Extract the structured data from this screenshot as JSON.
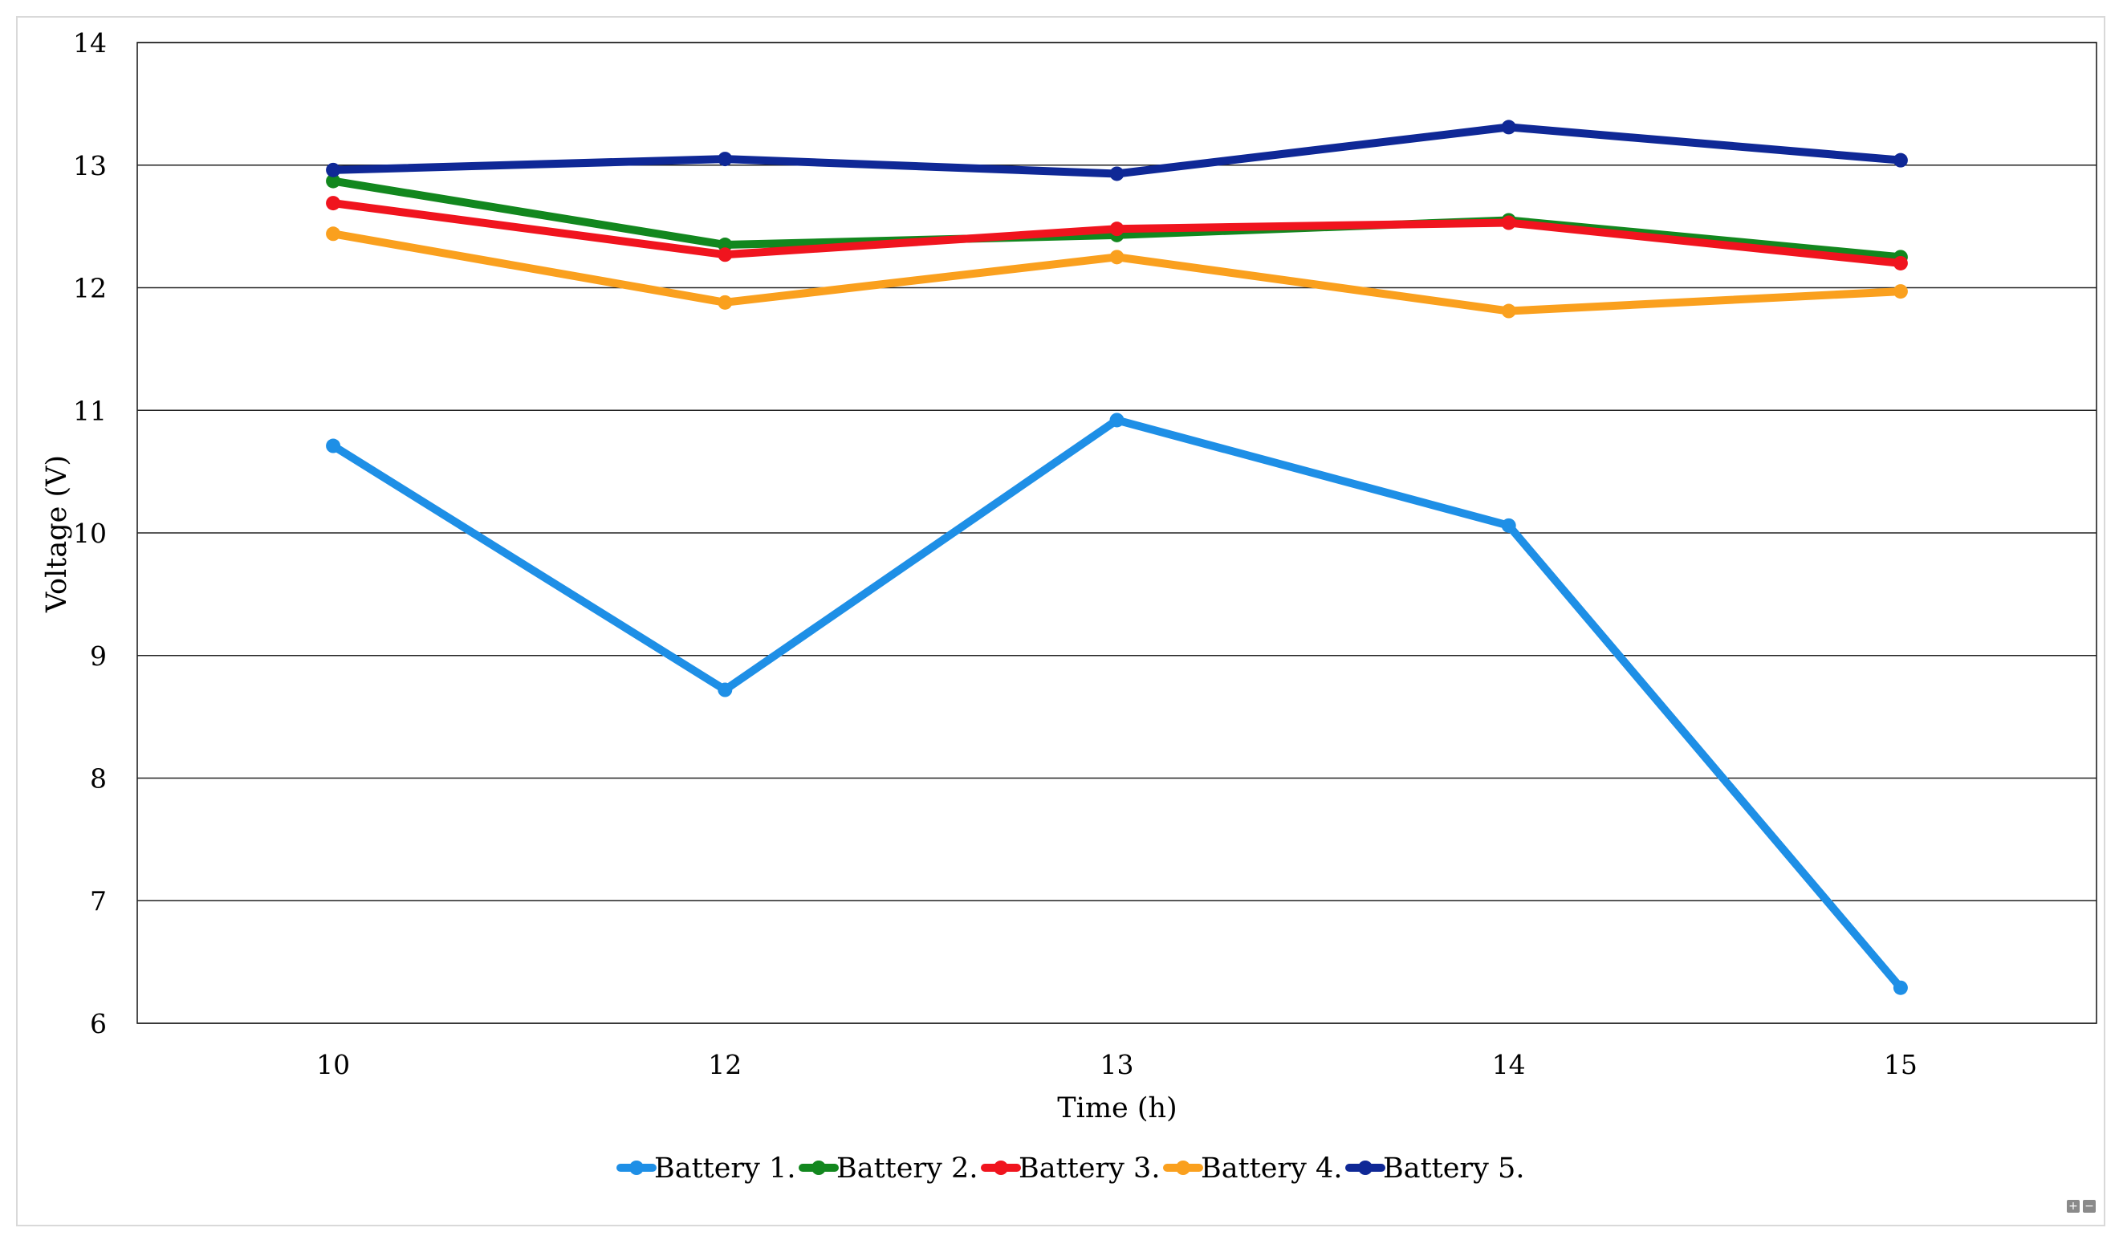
{
  "chart_data": {
    "type": "line",
    "title": "",
    "xlabel": "Time (h)",
    "ylabel": "Voltage (V)",
    "categories": [
      "10",
      "12",
      "13",
      "14",
      "15"
    ],
    "ylim": [
      6,
      14
    ],
    "yticks": [
      6,
      7,
      8,
      9,
      10,
      11,
      12,
      13,
      14
    ],
    "grid": true,
    "legend_position": "bottom",
    "series": [
      {
        "name": "Battery 1.",
        "color": "#1e8fe6",
        "values": [
          10.71,
          8.72,
          10.92,
          10.06,
          6.29
        ]
      },
      {
        "name": "Battery 2.",
        "color": "#12871e",
        "values": [
          12.87,
          12.35,
          12.43,
          12.55,
          12.25
        ]
      },
      {
        "name": "Battery 3.",
        "color": "#f0141e",
        "values": [
          12.69,
          12.27,
          12.48,
          12.53,
          12.2
        ]
      },
      {
        "name": "Battery 4.",
        "color": "#faa01e",
        "values": [
          12.44,
          11.88,
          12.25,
          11.81,
          11.97
        ]
      },
      {
        "name": "Battery 5.",
        "color": "#0f2896",
        "values": [
          12.96,
          13.05,
          12.93,
          13.31,
          13.04
        ]
      }
    ]
  },
  "controls": {
    "zoom_in": "+",
    "zoom_out": "−"
  }
}
